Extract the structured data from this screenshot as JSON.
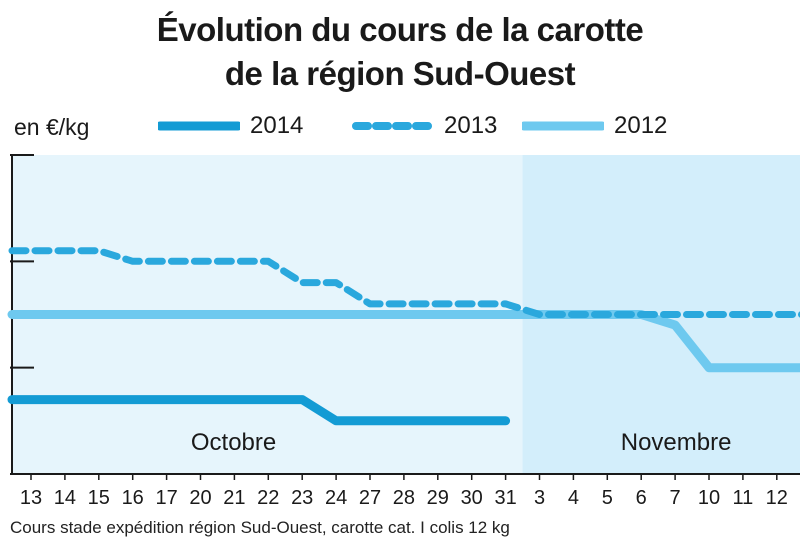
{
  "title_line1": "Évolution du cours de la carotte",
  "title_line2": "de la région Sud-Ouest",
  "unit_label": "en €/kg",
  "source": "Cours stade expédition région Sud-Ouest, carotte cat. I colis 12 kg",
  "colors": {
    "s2014": "#139bd4",
    "s2013": "#2aa8dd",
    "s2012": "#6ec9ef",
    "bg_oct": "#e6f5fc",
    "bg_nov": "#d3eefb",
    "axis": "#1a1a1a"
  },
  "chart_data": {
    "type": "line",
    "title": "Évolution du cours de la carotte de la région Sud-Ouest",
    "ylabel": "en €/kg",
    "y_tick_labels_shown": false,
    "ylim": [
      0,
      3
    ],
    "x_tick_labels": [
      "13",
      "14",
      "15",
      "16",
      "17",
      "20",
      "21",
      "22",
      "23",
      "24",
      "27",
      "28",
      "29",
      "30",
      "31",
      "3",
      "4",
      "5",
      "6",
      "7",
      "10",
      "11",
      "12",
      "13"
    ],
    "month_labels": [
      {
        "label": "Octobre",
        "from_index": 0,
        "to_index": 14
      },
      {
        "label": "Novembre",
        "from_index": 15,
        "to_index": 23
      }
    ],
    "legend": [
      "2014",
      "2013",
      "2012"
    ],
    "legend_position": "top",
    "series": [
      {
        "name": "2014",
        "style": "solid-thick",
        "values": [
          0.7,
          0.7,
          0.7,
          0.7,
          0.7,
          0.7,
          0.7,
          0.7,
          0.7,
          0.5,
          0.5,
          0.5,
          0.5,
          0.5,
          0.5,
          null,
          null,
          null,
          null,
          null,
          null,
          null,
          null,
          null
        ]
      },
      {
        "name": "2013",
        "style": "dashed",
        "values": [
          2.1,
          2.1,
          2.1,
          2.0,
          2.0,
          2.0,
          2.0,
          2.0,
          1.8,
          1.8,
          1.6,
          1.6,
          1.6,
          1.6,
          1.6,
          1.5,
          1.5,
          1.5,
          1.5,
          1.5,
          1.5,
          1.5,
          1.5,
          1.5
        ]
      },
      {
        "name": "2012",
        "style": "solid-light",
        "values": [
          1.5,
          1.5,
          1.5,
          1.5,
          1.5,
          1.5,
          1.5,
          1.5,
          1.5,
          1.5,
          1.5,
          1.5,
          1.5,
          1.5,
          1.5,
          1.5,
          1.5,
          1.5,
          1.5,
          1.4,
          1.0,
          1.0,
          1.0,
          1.0
        ]
      }
    ]
  }
}
